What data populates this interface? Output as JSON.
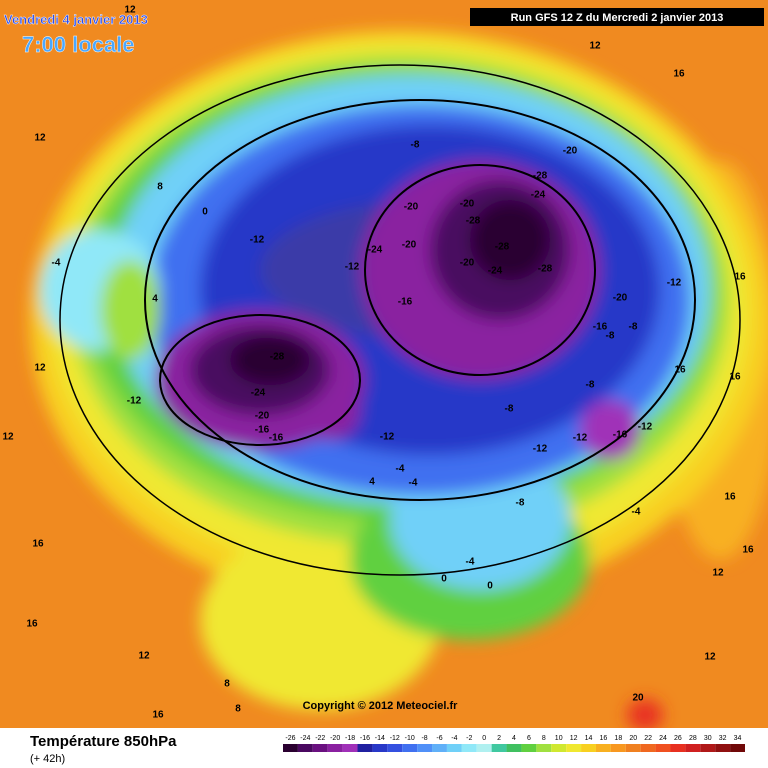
{
  "header": {
    "date": "Vendredi 4 janvier 2013",
    "time": "7:00 locale",
    "run": "Run GFS 12 Z du Mercredi 2 janvier 2013"
  },
  "footer": {
    "title": "Température 850hPa",
    "lead": "(+ 42h)",
    "copyright": "Copyright © 2012 Meteociel.fr"
  },
  "legend": {
    "ticks": [
      -26,
      -24,
      -22,
      -20,
      -18,
      -16,
      -14,
      -12,
      -10,
      -8,
      -6,
      -4,
      -2,
      0,
      2,
      4,
      6,
      8,
      10,
      12,
      14,
      16,
      18,
      20,
      22,
      24,
      26,
      28,
      30,
      32,
      34
    ],
    "colors": [
      "#2a0030",
      "#4a0860",
      "#6a1080",
      "#8a20a0",
      "#a030b8",
      "#2020a0",
      "#2838c8",
      "#3450e0",
      "#4070f0",
      "#5090f8",
      "#60b0f8",
      "#70d0f8",
      "#90e8f8",
      "#b0f0f0",
      "#40c8a0",
      "#40c060",
      "#60d040",
      "#a0e040",
      "#d0e830",
      "#f0e830",
      "#f8d020",
      "#f8b020",
      "#f89820",
      "#f08020",
      "#f06820",
      "#f05020",
      "#e83020",
      "#d02020",
      "#b01818",
      "#901010",
      "#700808"
    ]
  },
  "contour_labels": [
    "-28",
    "-24",
    "-20",
    "-16",
    "-16",
    "-28",
    "-24",
    "-20",
    "-28",
    "-20",
    "-28",
    "-24",
    "-20",
    "-28",
    "-20",
    "-16",
    "-24",
    "-20",
    "-12",
    "-12",
    "-8",
    "-8",
    "-8",
    "-12",
    "-12",
    "-16",
    "-12",
    "-8",
    "-8",
    "-4",
    "-4",
    "-4",
    "-4",
    "4",
    "4",
    "0",
    "0",
    "0",
    "-4",
    "-12",
    "-12",
    "-16",
    "-20",
    "-8",
    "-12",
    "8",
    "12",
    "12",
    "16",
    "16",
    "16",
    "12",
    "16",
    "16",
    "12",
    "8",
    "16",
    "12",
    "12",
    "16",
    "20",
    "12",
    "8",
    "16",
    "12",
    "16"
  ]
}
